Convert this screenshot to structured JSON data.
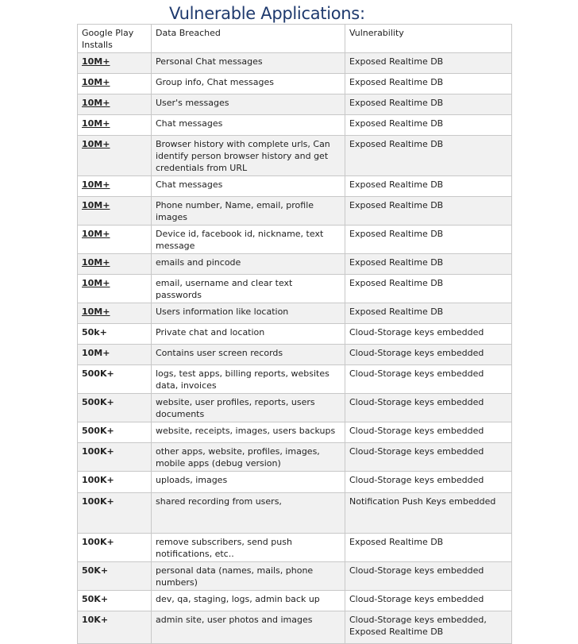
{
  "title": "Vulnerable Applications:",
  "columns": [
    "Google Play Installs",
    "Data Breached",
    "Vulnerability"
  ],
  "rows": [
    {
      "installs": "10M+",
      "underlined": true,
      "data": "Personal Chat messages",
      "vuln": "Exposed Realtime DB"
    },
    {
      "installs": "10M+",
      "underlined": true,
      "data": "Group info, Chat messages",
      "vuln": "Exposed Realtime DB"
    },
    {
      "installs": "10M+",
      "underlined": true,
      "data": "User's messages",
      "vuln": "Exposed Realtime DB"
    },
    {
      "installs": "10M+",
      "underlined": true,
      "data": "Chat messages",
      "vuln": "Exposed Realtime DB"
    },
    {
      "installs": "10M+",
      "underlined": true,
      "data": "Browser history with complete urls, Can identify person browser history and get credentials from URL",
      "vuln": "Exposed Realtime DB"
    },
    {
      "installs": "10M+",
      "underlined": true,
      "data": "Chat messages",
      "vuln": "Exposed Realtime DB"
    },
    {
      "installs": "10M+",
      "underlined": true,
      "data": "Phone number, Name, email, profile images",
      "vuln": "Exposed Realtime DB"
    },
    {
      "installs": "10M+",
      "underlined": true,
      "data": "Device id, facebook id, nickname, text message",
      "vuln": "Exposed Realtime DB"
    },
    {
      "installs": "10M+",
      "underlined": true,
      "data": "emails and pincode",
      "vuln": "Exposed Realtime DB"
    },
    {
      "installs": "10M+",
      "underlined": true,
      "data": "email, username and clear text passwords",
      "vuln": "Exposed Realtime DB"
    },
    {
      "installs": "10M+",
      "underlined": true,
      "data": "Users information like location",
      "vuln": "Exposed Realtime DB"
    },
    {
      "installs": "50k+",
      "underlined": false,
      "data": "Private chat and location",
      "vuln": "Cloud-Storage keys embedded"
    },
    {
      "installs": "10M+",
      "underlined": false,
      "data": "Contains user screen records",
      "vuln": "Cloud-Storage keys embedded"
    },
    {
      "installs": "500K+",
      "underlined": false,
      "data": "logs, test apps, billing reports, websites data, invoices",
      "vuln": "Cloud-Storage keys embedded"
    },
    {
      "installs": "500K+",
      "underlined": false,
      "data": "website, user profiles, reports, users documents",
      "vuln": "Cloud-Storage keys embedded"
    },
    {
      "installs": "500K+",
      "underlined": false,
      "data": "website, receipts, images, users backups",
      "vuln": "Cloud-Storage keys embedded"
    },
    {
      "installs": "100K+",
      "underlined": false,
      "data": "other apps, website, profiles, images, mobile apps (debug version)",
      "vuln": "Cloud-Storage keys embedded"
    },
    {
      "installs": "100K+",
      "underlined": false,
      "data": "uploads, images",
      "vuln": "Cloud-Storage keys embedded"
    },
    {
      "installs": "100K+",
      "underlined": false,
      "data": "shared recording from users,",
      "vuln": "Notification Push Keys embedded"
    },
    {
      "installs": "100K+",
      "underlined": false,
      "data": "remove subscribers, send push notifications, etc..",
      "vuln": "Exposed Realtime DB"
    },
    {
      "installs": "50K+",
      "underlined": false,
      "data": "personal data (names, mails, phone numbers)",
      "vuln": "Cloud-Storage keys embedded"
    },
    {
      "installs": "50K+",
      "underlined": false,
      "data": "dev, qa, staging, logs, admin back up",
      "vuln": "Cloud-Storage keys embedded"
    },
    {
      "installs": "10K+",
      "underlined": false,
      "data": "admin site, user photos and images",
      "vuln": "Cloud-Storage keys embedded, Exposed Realtime DB"
    }
  ]
}
